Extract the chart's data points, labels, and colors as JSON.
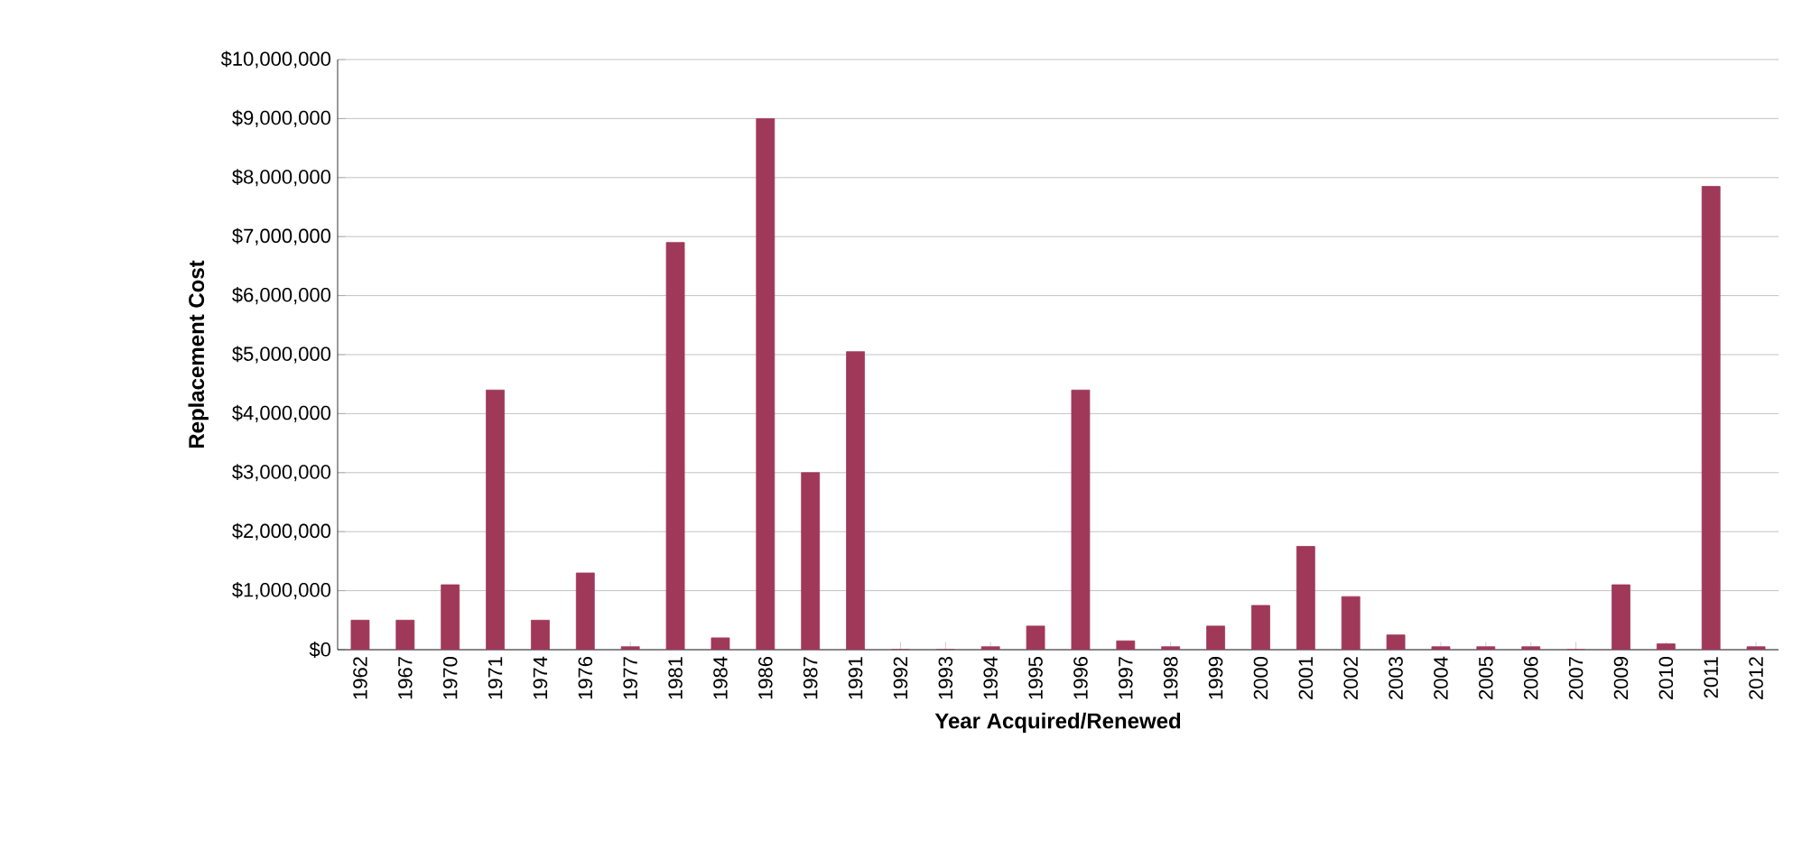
{
  "chart_data": {
    "type": "bar",
    "xlabel": "Year Acquired/Renewed",
    "ylabel": "Replacement Cost",
    "categories": [
      "1962",
      "1967",
      "1970",
      "1971",
      "1974",
      "1976",
      "1977",
      "1981",
      "1984",
      "1986",
      "1987",
      "1991",
      "1992",
      "1993",
      "1994",
      "1995",
      "1996",
      "1997",
      "1998",
      "1999",
      "2000",
      "2001",
      "2002",
      "2003",
      "2004",
      "2005",
      "2006",
      "2007",
      "2009",
      "2010",
      "2011",
      "2012"
    ],
    "values": [
      500000,
      500000,
      1100000,
      4400000,
      500000,
      1300000,
      50000,
      6900000,
      200000,
      9000000,
      3000000,
      5050000,
      0,
      0,
      50000,
      400000,
      4400000,
      150000,
      50000,
      400000,
      750000,
      1750000,
      900000,
      250000,
      50000,
      50000,
      50000,
      0,
      1100000,
      100000,
      7850000,
      50000
    ],
    "color": "#a0385a",
    "ylim": [
      0,
      10000000
    ],
    "yticks": [
      {
        "value": 0,
        "label": "$0"
      },
      {
        "value": 1000000,
        "label": "$1,000,000"
      },
      {
        "value": 2000000,
        "label": "$2,000,000"
      },
      {
        "value": 3000000,
        "label": "$3,000,000"
      },
      {
        "value": 4000000,
        "label": "$4,000,000"
      },
      {
        "value": 5000000,
        "label": "$5,000,000"
      },
      {
        "value": 6000000,
        "label": "$6,000,000"
      },
      {
        "value": 7000000,
        "label": "$7,000,000"
      },
      {
        "value": 8000000,
        "label": "$8,000,000"
      },
      {
        "value": 9000000,
        "label": "$9,000,000"
      },
      {
        "value": 10000000,
        "label": "$10,000,000"
      }
    ],
    "grid": "y"
  }
}
